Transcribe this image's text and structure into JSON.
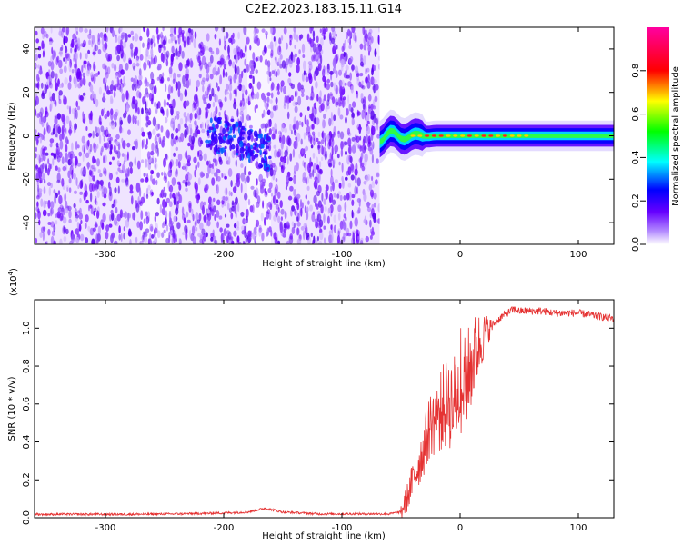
{
  "title": "C2E2.2023.183.15.11.G14",
  "colors": {
    "snr_line": "#e53232",
    "frame": "#000000"
  },
  "chart_data": [
    {
      "type": "heatmap",
      "name": "spectrogram",
      "xlabel": "Height of straight line (km)",
      "ylabel": "Frequency (Hz)",
      "xlim": [
        -360,
        130
      ],
      "ylim": [
        -50,
        50
      ],
      "xticks": [
        -300,
        -200,
        -100,
        0,
        100
      ],
      "yticks": [
        -40,
        -20,
        0,
        20,
        40
      ],
      "colorbar": {
        "label": "Normalized spectral amplitude",
        "range": [
          0,
          1
        ],
        "ticks": [
          0.0,
          0.2,
          0.4,
          0.6,
          0.8
        ],
        "colormap": [
          "#ffffff",
          "#b48cff",
          "#6600ff",
          "#0000ff",
          "#00ffff",
          "#00ff00",
          "#ffff00",
          "#ff0000",
          "#ff00a0"
        ]
      },
      "features": {
        "noise_region_x": [
          -360,
          -68
        ],
        "data_gap_x": [
          -68,
          130
        ],
        "tone_center_hz": 0,
        "tone_start_x": -68,
        "turbulent_blob_x": [
          -215,
          -160
        ]
      }
    },
    {
      "type": "line",
      "name": "snr",
      "xlabel": "Height of straight line (km)",
      "ylabel": "SNR (10 * v/v)",
      "ylabel_exponent": "(x10",
      "ylabel_exponent_power": "4",
      "ylabel_exponent_close": ")",
      "xlim": [
        -360,
        130
      ],
      "ylim": [
        0,
        1.15
      ],
      "xticks": [
        -300,
        -200,
        -100,
        0,
        100
      ],
      "yticks": [
        0.0,
        0.2,
        0.4,
        0.6,
        0.8,
        1.0
      ],
      "series": [
        {
          "x": [
            -360,
            -320,
            -280,
            -240,
            -200,
            -180,
            -165,
            -150,
            -120,
            -90,
            -60,
            -50,
            -45,
            -40,
            -35,
            -30,
            -25,
            -20,
            -15,
            -10,
            -5,
            0,
            5,
            10,
            15,
            20,
            25,
            30,
            35,
            40,
            45,
            50,
            60,
            70,
            80,
            90,
            100,
            110,
            120,
            130
          ],
          "y": [
            0.018,
            0.018,
            0.018,
            0.02,
            0.025,
            0.03,
            0.05,
            0.03,
            0.02,
            0.02,
            0.02,
            0.03,
            0.1,
            0.2,
            0.28,
            0.38,
            0.5,
            0.52,
            0.58,
            0.6,
            0.62,
            0.68,
            0.72,
            0.82,
            0.9,
            0.96,
            1.0,
            1.03,
            1.06,
            1.08,
            1.1,
            1.09,
            1.09,
            1.09,
            1.08,
            1.08,
            1.08,
            1.07,
            1.06,
            1.05
          ]
        }
      ]
    }
  ]
}
